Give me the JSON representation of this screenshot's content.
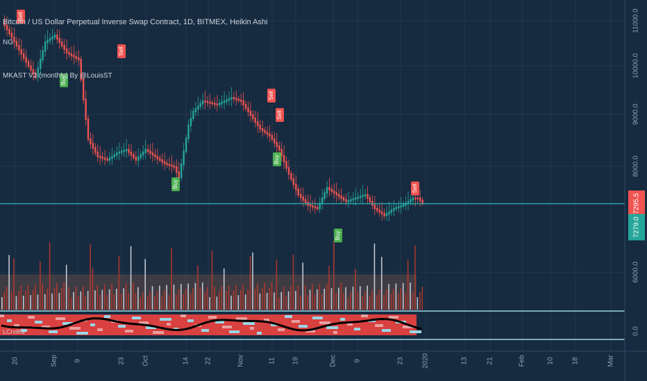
{
  "header": {
    "title": "Bitcoin / US Dollar Perpetual Inverse Swap Contract, 1D, BITMEX, Heikin Ashi",
    "indicator1": "NG",
    "indicator2": "MKAST V2 (monthly) By @LouisST",
    "indicator3": "LCrvlKe"
  },
  "colors": {
    "background": "#172b40",
    "up": "#26a69a",
    "down": "#ef5350",
    "price_line": "#2ab7b8",
    "buy_badge": "#4caf50",
    "sell_badge": "#f05350"
  },
  "chart_data": {
    "type": "candlestick",
    "y_ticks": [
      "11000.0",
      "10000.0",
      "9000.0",
      "8000.0",
      "6000.0"
    ],
    "current_price": "7295.5",
    "alt_price": "7279.0",
    "osc_tick": "0.0",
    "x_ticks": [
      "20",
      "Sep",
      "9",
      "23",
      "Oct",
      "14",
      "22",
      "Nov",
      "11",
      "19",
      "Dec",
      "9",
      "23",
      "2020",
      "13",
      "21",
      "Feb",
      "10",
      "18",
      "Mar"
    ],
    "signals": [
      {
        "label": "Sell",
        "date": "Aug 19"
      },
      {
        "label": "Buy",
        "date": "Sep 4"
      },
      {
        "label": "Sell",
        "date": "Sep 19"
      },
      {
        "label": "Buy",
        "date": "Oct 10"
      },
      {
        "label": "Sell",
        "date": "Nov 8"
      },
      {
        "label": "Sell",
        "date": "Nov 10"
      },
      {
        "label": "Buy",
        "date": "Nov 11"
      },
      {
        "label": "Buy",
        "date": "Dec 2"
      },
      {
        "label": "Sell",
        "date": "Dec 24"
      }
    ]
  }
}
